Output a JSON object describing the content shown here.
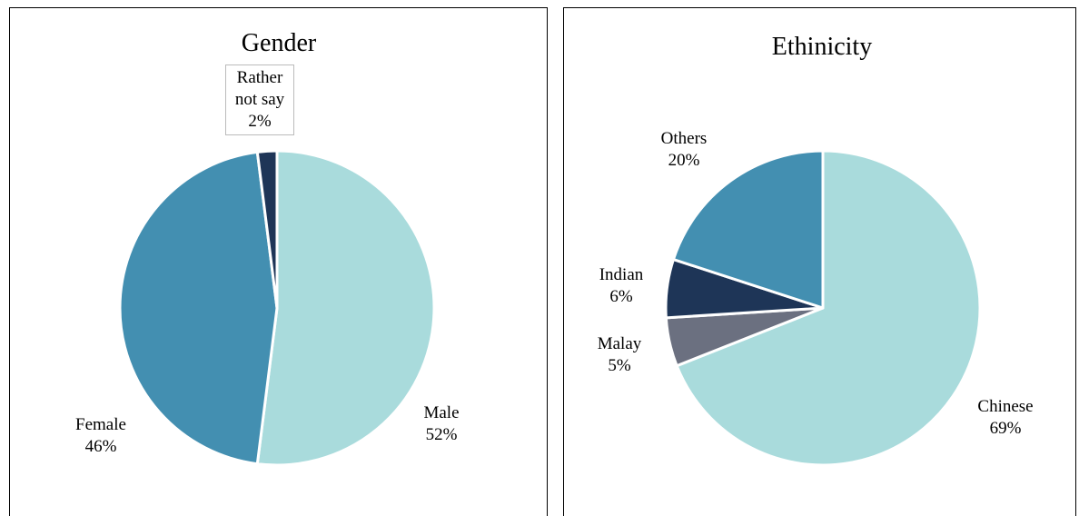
{
  "chart_data": [
    {
      "type": "pie",
      "title": "Gender",
      "categories": [
        "Male",
        "Female",
        "Rather not say"
      ],
      "values": [
        52,
        46,
        2
      ],
      "value_labels": [
        "52%",
        "46%",
        "2%"
      ],
      "colors": [
        "#a9dbdc",
        "#438fb1",
        "#1e3557"
      ]
    },
    {
      "type": "pie",
      "title": "Ethinicity",
      "categories": [
        "Chinese",
        "Malay",
        "Indian",
        "Others"
      ],
      "values": [
        69,
        5,
        6,
        20
      ],
      "value_labels": [
        "69%",
        "5%",
        "6%",
        "20%"
      ],
      "colors": [
        "#a9dbdc",
        "#6b7080",
        "#1e3557",
        "#438fb1"
      ]
    }
  ]
}
